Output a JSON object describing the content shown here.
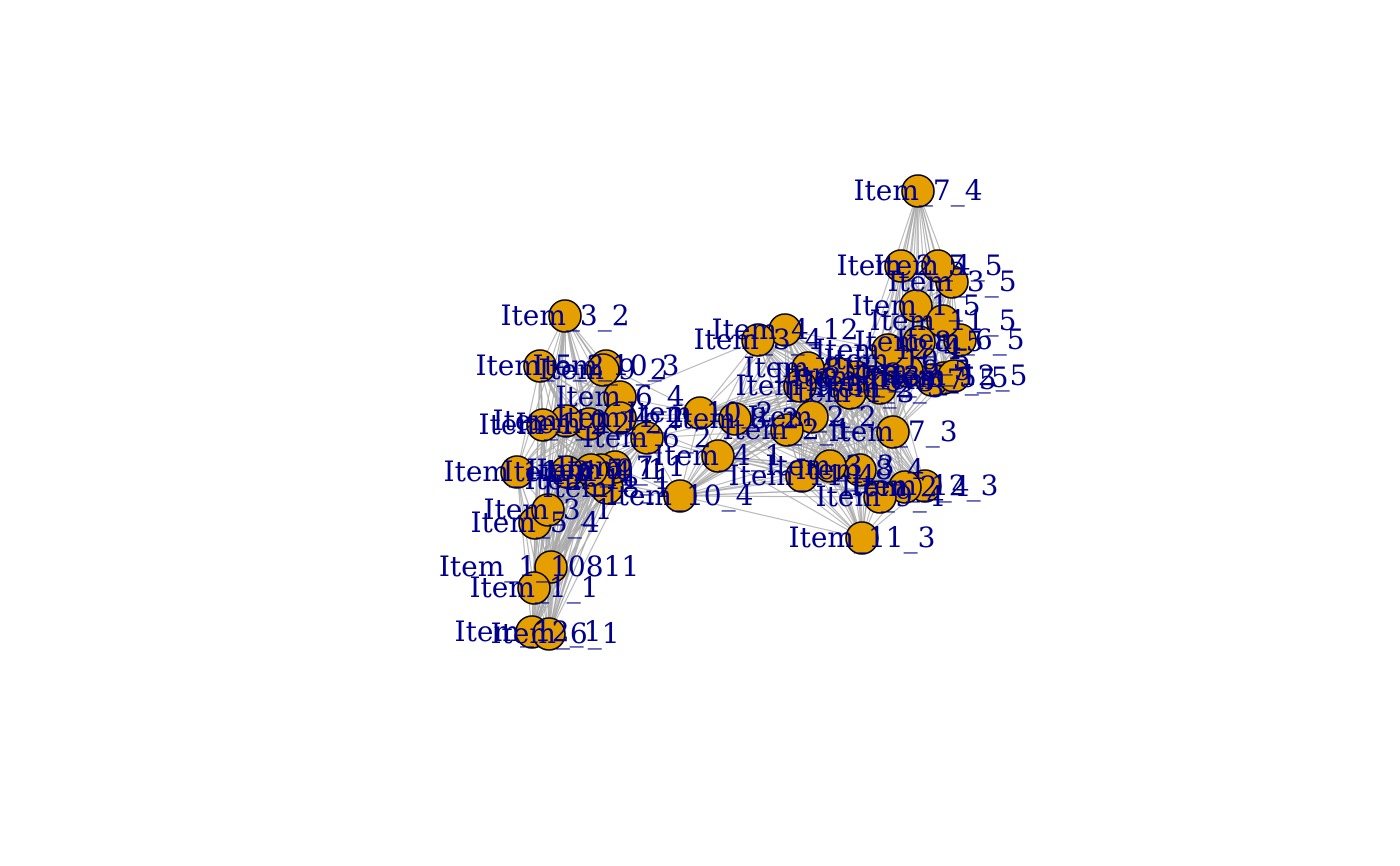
{
  "colors": {
    "node_fill": "#E69F00",
    "node_stroke": "#000000",
    "edge": "#a9a9a9",
    "label": "#00008B"
  },
  "nodes": [
    {
      "id": "n1",
      "label": "Item_7_4"
    },
    {
      "id": "n2",
      "label": "Item_3_2"
    },
    {
      "id": "n3",
      "label": "Item_4_12"
    },
    {
      "id": "n4",
      "label": "Item_7_3"
    },
    {
      "id": "n5",
      "label": "Item_11_3"
    },
    {
      "id": "n6",
      "label": "Item_10_4"
    },
    {
      "id": "n7",
      "label": "Item_1_10811"
    },
    {
      "id": "n8",
      "label": "Item_1_1"
    },
    {
      "id": "n9",
      "label": "Item_5_4"
    },
    {
      "id": "n10",
      "label": "Item_3_1"
    },
    {
      "id": "n11",
      "label": "Item_12_1"
    },
    {
      "id": "n12",
      "label": "Item_6_1"
    },
    {
      "id": "n13",
      "label": "Item_6_4"
    },
    {
      "id": "n14",
      "label": "Item_10_3"
    },
    {
      "id": "n15",
      "label": "Item_3_5"
    },
    {
      "id": "n16",
      "label": "Item_4_5"
    },
    {
      "id": "n17",
      "label": "Item_1_5"
    },
    {
      "id": "n18",
      "label": "Item_12_3"
    },
    {
      "id": "n19",
      "label": "Item_8_4"
    },
    {
      "id": "n20",
      "label": "Item_2_4"
    },
    {
      "id": "n21",
      "label": "Item_9_4"
    },
    {
      "id": "n22",
      "label": "Item_3_3"
    },
    {
      "id": "n23",
      "label": "Item_2_2"
    },
    {
      "id": "n24",
      "label": "Item_8_1"
    },
    {
      "id": "n25",
      "label": "Item_2_1"
    },
    {
      "id": "n26",
      "label": "Item_4_1"
    },
    {
      "id": "n27",
      "label": "Item_9_2"
    },
    {
      "id": "n28",
      "label": "Item_12_2"
    },
    {
      "id": "n29",
      "label": "Item_6_2"
    },
    {
      "id": "n30",
      "label": "Item_8_2"
    },
    {
      "id": "n31",
      "label": "Item_10_2"
    },
    {
      "id": "n32",
      "label": "Item_7_1"
    },
    {
      "id": "n33",
      "label": "Item_9_1"
    },
    {
      "id": "n34",
      "label": "Item_11_1"
    },
    {
      "id": "n35",
      "label": "Item_6_5"
    },
    {
      "id": "n36",
      "label": "Item_5_5"
    },
    {
      "id": "n37",
      "label": "Item_7_5"
    },
    {
      "id": "n38",
      "label": "Item_8_5"
    },
    {
      "id": "n39",
      "label": "Item_2_5"
    },
    {
      "id": "n40",
      "label": "Item_9_5"
    },
    {
      "id": "n41",
      "label": "Item_10_5"
    },
    {
      "id": "n42",
      "label": "Item_11_5"
    },
    {
      "id": "n43",
      "label": "Item_12_5"
    },
    {
      "id": "n44",
      "label": "Item_5_3"
    },
    {
      "id": "n45",
      "label": "Item_6_3"
    },
    {
      "id": "n46",
      "label": "Item_4_3"
    },
    {
      "id": "n47",
      "label": "Item_1_3"
    },
    {
      "id": "n48",
      "label": "Item_2_3"
    },
    {
      "id": "n49",
      "label": "Item_8_3"
    },
    {
      "id": "n50",
      "label": "Item_9_3"
    },
    {
      "id": "n51",
      "label": "Item_10_1"
    },
    {
      "id": "n52",
      "label": "Item_5_1"
    },
    {
      "id": "n53",
      "label": "Item_4_2"
    },
    {
      "id": "n54",
      "label": "Item_5_2"
    },
    {
      "id": "n55",
      "label": "Item_1_2"
    },
    {
      "id": "n56",
      "label": "Item_11_2"
    },
    {
      "id": "n57",
      "label": "Item_1_4"
    },
    {
      "id": "n58",
      "label": "Item_3_4"
    },
    {
      "id": "n59",
      "label": "Item_11_4"
    },
    {
      "id": "n60",
      "label": "Item_12_4"
    }
  ]
}
